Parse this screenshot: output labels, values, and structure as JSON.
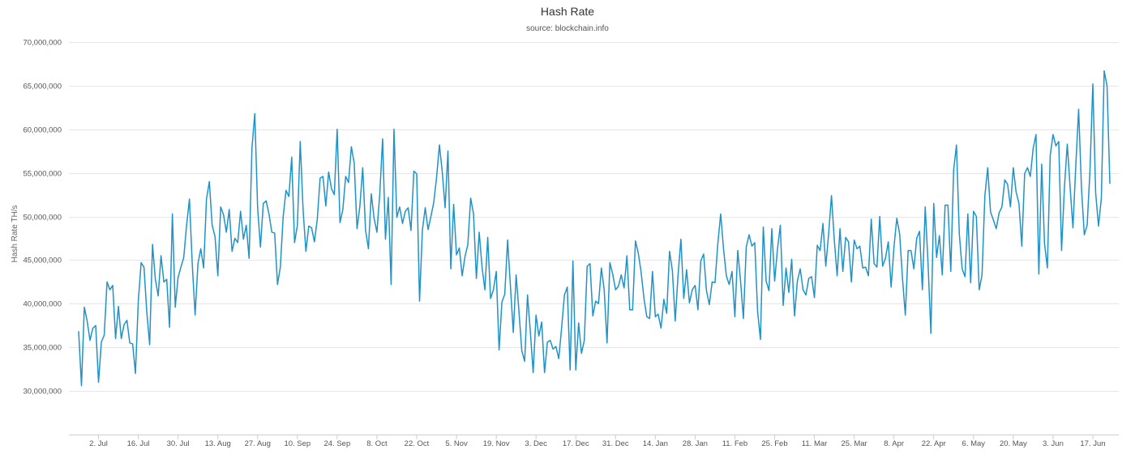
{
  "chart_data": {
    "type": "line",
    "title": "Hash Rate",
    "subtitle": "source: blockchain.info",
    "ylabel": "Hash Rate TH/s",
    "xlabel": "",
    "ylim": [
      25000000,
      70000000
    ],
    "y_ticks": [
      {
        "value": 30000000,
        "label": "30,000,000"
      },
      {
        "value": 35000000,
        "label": "35,000,000"
      },
      {
        "value": 40000000,
        "label": "40,000,000"
      },
      {
        "value": 45000000,
        "label": "45,000,000"
      },
      {
        "value": 50000000,
        "label": "50,000,000"
      },
      {
        "value": 55000000,
        "label": "55,000,000"
      },
      {
        "value": 60000000,
        "label": "60,000,000"
      },
      {
        "value": 65000000,
        "label": "65,000,000"
      },
      {
        "value": 70000000,
        "label": "70,000,000"
      }
    ],
    "x_start_label": "2. Jul",
    "x_tick_labels": [
      "2. Jul",
      "16. Jul",
      "30. Jul",
      "13. Aug",
      "27. Aug",
      "10. Sep",
      "24. Sep",
      "8. Oct",
      "22. Oct",
      "5. Nov",
      "19. Nov",
      "3. Dec",
      "17. Dec",
      "31. Dec",
      "14. Jan",
      "28. Jan",
      "11. Feb",
      "25. Feb",
      "11. Mar",
      "25. Mar",
      "8. Apr",
      "22. Apr",
      "6. May",
      "20. May",
      "3. Jun",
      "17. Jun"
    ],
    "x_tick_interval_days": 14,
    "grid": true,
    "legend": "none",
    "series": [
      {
        "color": "#1f93c8",
        "values": [
          36800000,
          30600000,
          39600000,
          38000000,
          35800000,
          37200000,
          37500000,
          31000000,
          35600000,
          36400000,
          42500000,
          41600000,
          42100000,
          36000000,
          39700000,
          36000000,
          37600000,
          38100000,
          35500000,
          35400000,
          32000000,
          40300000,
          44700000,
          44200000,
          39000000,
          35300000,
          46800000,
          42800000,
          40900000,
          45500000,
          42500000,
          42800000,
          37300000,
          50300000,
          39600000,
          43000000,
          44200000,
          45300000,
          49000000,
          52000000,
          44500000,
          38700000,
          44600000,
          46300000,
          44100000,
          52000000,
          54000000,
          49000000,
          47700000,
          43200000,
          51100000,
          50200000,
          48200000,
          50800000,
          46000000,
          47500000,
          47000000,
          50600000,
          47400000,
          49000000,
          45200000,
          57800000,
          61800000,
          51000000,
          46500000,
          51500000,
          51800000,
          50300000,
          48200000,
          48100000,
          42200000,
          44200000,
          50000000,
          53000000,
          52300000,
          56800000,
          47000000,
          49000000,
          58600000,
          50800000,
          46000000,
          48900000,
          48700000,
          47100000,
          49700000,
          54400000,
          54600000,
          51200000,
          55100000,
          53200000,
          52500000,
          60000000,
          49300000,
          50800000,
          54600000,
          53900000,
          58000000,
          56100000,
          48600000,
          51200000,
          55600000,
          48400000,
          46300000,
          52600000,
          49800000,
          48200000,
          52600000,
          58900000,
          47400000,
          52200000,
          42200000,
          60000000,
          49900000,
          51100000,
          49200000,
          50600000,
          51000000,
          48400000,
          55200000,
          54900000,
          40300000,
          48400000,
          51000000,
          48500000,
          50000000,
          51600000,
          54500000,
          58200000,
          55100000,
          51000000,
          57500000,
          44000000,
          51400000,
          45600000,
          46400000,
          43200000,
          45400000,
          46800000,
          52100000,
          50300000,
          42900000,
          48200000,
          44200000,
          41600000,
          47600000,
          40600000,
          41600000,
          43700000,
          34700000,
          40200000,
          41100000,
          47300000,
          42000000,
          36700000,
          43300000,
          39100000,
          34600000,
          33400000,
          41000000,
          36800000,
          32100000,
          38700000,
          36300000,
          37900000,
          32100000,
          35600000,
          35800000,
          34800000,
          35100000,
          33700000,
          37200000,
          41000000,
          41900000,
          32400000,
          44900000,
          32400000,
          37800000,
          34300000,
          35800000,
          44300000,
          44600000,
          38600000,
          40300000,
          40000000,
          44100000,
          41600000,
          35500000,
          44700000,
          43400000,
          41600000,
          42000000,
          43300000,
          41800000,
          45500000,
          39300000,
          39300000,
          47200000,
          45800000,
          43600000,
          40600000,
          38500000,
          38300000,
          43700000,
          38500000,
          38800000,
          37200000,
          40500000,
          38900000,
          46000000,
          43800000,
          38000000,
          43300000,
          47400000,
          40600000,
          43900000,
          40100000,
          41600000,
          42100000,
          39300000,
          44900000,
          45700000,
          41500000,
          39900000,
          42500000,
          42400000,
          46900000,
          50300000,
          46300000,
          43200000,
          42200000,
          43700000,
          38500000,
          46100000,
          42600000,
          38300000,
          46500000,
          47900000,
          46600000,
          47000000,
          39100000,
          35900000,
          48800000,
          42600000,
          41500000,
          48600000,
          42600000,
          46300000,
          49000000,
          39800000,
          44100000,
          41300000,
          45100000,
          38600000,
          42600000,
          44000000,
          41600000,
          41000000,
          42900000,
          43100000,
          40700000,
          46700000,
          46100000,
          49200000,
          44300000,
          48000000,
          52400000,
          47300000,
          43200000,
          48600000,
          43700000,
          47600000,
          47100000,
          42500000,
          47300000,
          46300000,
          46600000,
          44100000,
          44200000,
          43200000,
          49700000,
          44600000,
          44200000,
          50000000,
          44300000,
          45200000,
          47100000,
          41900000,
          46500000,
          49800000,
          48000000,
          42900000,
          38700000,
          46100000,
          46100000,
          44000000,
          47500000,
          48300000,
          41600000,
          51100000,
          44600000,
          36600000,
          51500000,
          45300000,
          47800000,
          43300000,
          51300000,
          51300000,
          43700000,
          55300000,
          58200000,
          48000000,
          44000000,
          43100000,
          50300000,
          42400000,
          50600000,
          50000000,
          41600000,
          43300000,
          52400000,
          55600000,
          50500000,
          49600000,
          48600000,
          50400000,
          51100000,
          54200000,
          53700000,
          51100000,
          55600000,
          52800000,
          51500000,
          46600000,
          54900000,
          55600000,
          54600000,
          57800000,
          59400000,
          43400000,
          56000000,
          46900000,
          44100000,
          57000000,
          59400000,
          58100000,
          58600000,
          46100000,
          53300000,
          58300000,
          53400000,
          48700000,
          55800000,
          62300000,
          53300000,
          47900000,
          49000000,
          55300000,
          65200000,
          52700000,
          48900000,
          52100000,
          66700000,
          65000000,
          53800000
        ]
      }
    ]
  }
}
